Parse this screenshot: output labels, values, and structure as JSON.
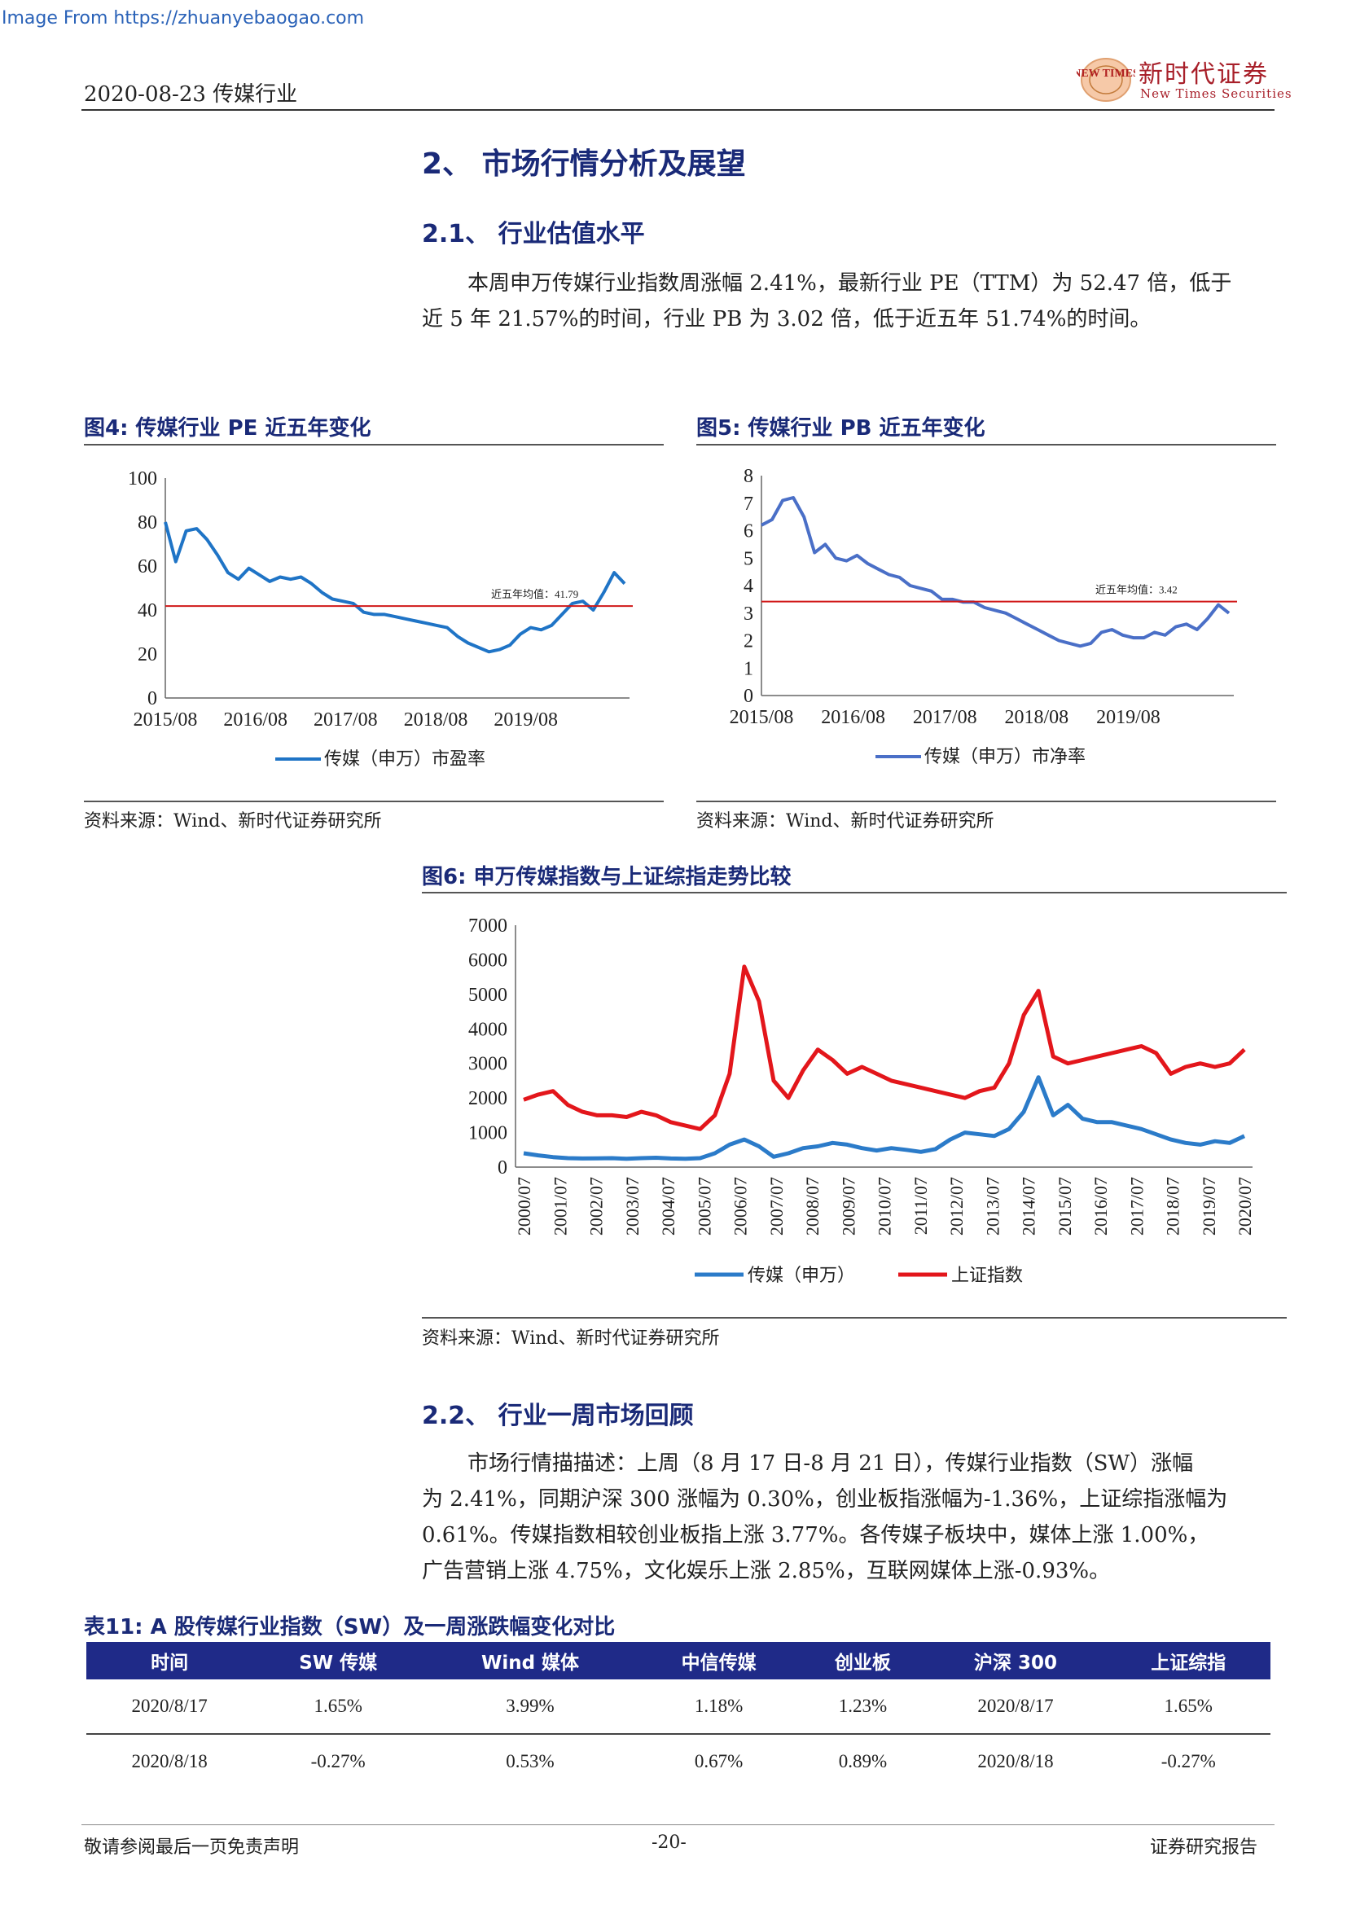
{
  "watermark": "Image From https://zhuanyebaogao.com",
  "header": {
    "date_industry": "2020-08-23 传媒行业",
    "logo_cn": "新时代证券",
    "logo_en": "New Times Securities",
    "logo_mark": "NEW TIMES"
  },
  "section": {
    "title": "2、 市场行情分析及展望"
  },
  "sub1": {
    "title": "2.1、 行业估值水平",
    "para_line1": "本周申万传媒行业指数周涨幅 2.41%，最新行业 PE（TTM）为 52.47 倍，低于",
    "para_line2": "近 5 年 21.57%的时间，行业 PB 为 3.02 倍，低于近五年 51.74%的时间。"
  },
  "fig4": {
    "title": "图4:  传媒行业 PE 近五年变化",
    "source": "资料来源：Wind、新时代证券研究所"
  },
  "fig5": {
    "title": "图5:  传媒行业 PB 近五年变化",
    "source": "资料来源：Wind、新时代证券研究所"
  },
  "fig6": {
    "title": "图6:  申万传媒指数与上证综指走势比较",
    "source": "资料来源：Wind、新时代证券研究所"
  },
  "sub2": {
    "title": "2.2、 行业一周市场回顾",
    "para_line1": "市场行情描描述：上周（8 月 17 日-8 月 21 日），传媒行业指数（SW）涨幅",
    "para_line2": "为 2.41%，同期沪深 300 涨幅为 0.30%，创业板指涨幅为-1.36%，上证综指涨幅为",
    "para_line3": "0.61%。传媒指数相较创业板指上涨 3.77%。各传媒子板块中，媒体上涨 1.00%，",
    "para_line4": "广告营销上涨 4.75%，文化娱乐上涨 2.85%，互联网媒体上涨-0.93%。"
  },
  "table11": {
    "title": "表11:  A 股传媒行业指数（SW）及一周涨跌幅变化对比",
    "headers": [
      "时间",
      "SW 传媒",
      "Wind 媒体",
      "中信传媒",
      "创业板",
      "沪深 300",
      "上证综指"
    ],
    "rows": [
      [
        "2020/8/17",
        "1.65%",
        "3.99%",
        "1.18%",
        "1.23%",
        "2020/8/17",
        "1.65%"
      ],
      [
        "2020/8/18",
        "-0.27%",
        "0.53%",
        "0.67%",
        "0.89%",
        "2020/8/18",
        "-0.27%"
      ]
    ]
  },
  "footer": {
    "left": "敬请参阅最后一页免责声明",
    "page": "-20-",
    "right": "证券研究报告"
  },
  "colors": {
    "navy": "#1a2a78",
    "pe_line": "#1f74c6",
    "pb_line": "#4a6fc7",
    "sw_line": "#2b7bc9",
    "sh_line": "#e3161b",
    "avg_line": "#d01818"
  },
  "chart_data": [
    {
      "type": "line",
      "x_ticks": [
        "2015/08",
        "2016/08",
        "2017/08",
        "2018/08",
        "2019/08"
      ],
      "ylim": [
        0,
        100
      ],
      "y_ticks": [
        0,
        20,
        40,
        60,
        80,
        100
      ],
      "series": [
        {
          "name": "传媒（申万）市盈率",
          "values": [
            80,
            62,
            76,
            77,
            72,
            65,
            57,
            54,
            59,
            56,
            53,
            55,
            54,
            55,
            52,
            48,
            45,
            44,
            43,
            39,
            38,
            38,
            37,
            36,
            35,
            34,
            33,
            32,
            28,
            25,
            23,
            21,
            22,
            24,
            29,
            32,
            31,
            33,
            38,
            43,
            44,
            40,
            48,
            57,
            52
          ]
        }
      ],
      "annotations": [
        {
          "text": "近五年均值：41.79",
          "value": 41.79
        }
      ],
      "legend": "bottom"
    },
    {
      "type": "line",
      "x_ticks": [
        "2015/08",
        "2016/08",
        "2017/08",
        "2018/08",
        "2019/08"
      ],
      "ylim": [
        0,
        8
      ],
      "y_ticks": [
        0,
        1,
        2,
        3,
        4,
        5,
        6,
        7,
        8
      ],
      "series": [
        {
          "name": "传媒（申万）市净率",
          "values": [
            6.2,
            6.4,
            7.1,
            7.2,
            6.5,
            5.2,
            5.5,
            5.0,
            4.9,
            5.1,
            4.8,
            4.6,
            4.4,
            4.3,
            4.0,
            3.9,
            3.8,
            3.5,
            3.5,
            3.4,
            3.4,
            3.2,
            3.1,
            3.0,
            2.8,
            2.6,
            2.4,
            2.2,
            2.0,
            1.9,
            1.8,
            1.9,
            2.3,
            2.4,
            2.2,
            2.1,
            2.1,
            2.3,
            2.2,
            2.5,
            2.6,
            2.4,
            2.8,
            3.3,
            3.0
          ]
        }
      ],
      "annotations": [
        {
          "text": "近五年均值：3.42",
          "value": 3.42
        }
      ],
      "legend": "bottom"
    },
    {
      "type": "line",
      "x_ticks": [
        "2000/07",
        "2001/07",
        "2002/07",
        "2003/07",
        "2004/07",
        "2005/07",
        "2006/07",
        "2007/07",
        "2008/07",
        "2009/07",
        "2010/07",
        "2011/07",
        "2012/07",
        "2013/07",
        "2014/07",
        "2015/07",
        "2016/07",
        "2017/07",
        "2018/07",
        "2019/07",
        "2020/07"
      ],
      "ylim": [
        0,
        7000
      ],
      "y_ticks": [
        0,
        1000,
        2000,
        3000,
        4000,
        5000,
        6000,
        7000
      ],
      "series": [
        {
          "name": "传媒（申万）",
          "values": [
            400,
            340,
            290,
            260,
            250,
            255,
            260,
            240,
            260,
            270,
            250,
            240,
            260,
            400,
            650,
            800,
            600,
            300,
            400,
            550,
            600,
            700,
            650,
            550,
            480,
            550,
            500,
            440,
            520,
            800,
            1000,
            950,
            900,
            1100,
            1600,
            2600,
            1500,
            1800,
            1400,
            1300,
            1300,
            1200,
            1100,
            950,
            800,
            700,
            650,
            750,
            700,
            900
          ]
        },
        {
          "name": "上证指数",
          "values": [
            1950,
            2100,
            2200,
            1800,
            1600,
            1500,
            1500,
            1450,
            1600,
            1500,
            1300,
            1200,
            1100,
            1500,
            2700,
            5800,
            4800,
            2500,
            2000,
            2800,
            3400,
            3100,
            2700,
            2900,
            2700,
            2500,
            2400,
            2300,
            2200,
            2100,
            2000,
            2200,
            2300,
            3000,
            4400,
            5100,
            3200,
            3000,
            3100,
            3200,
            3300,
            3400,
            3500,
            3300,
            2700,
            2900,
            3000,
            2900,
            3000,
            3400
          ]
        }
      ],
      "legend": "bottom"
    }
  ]
}
